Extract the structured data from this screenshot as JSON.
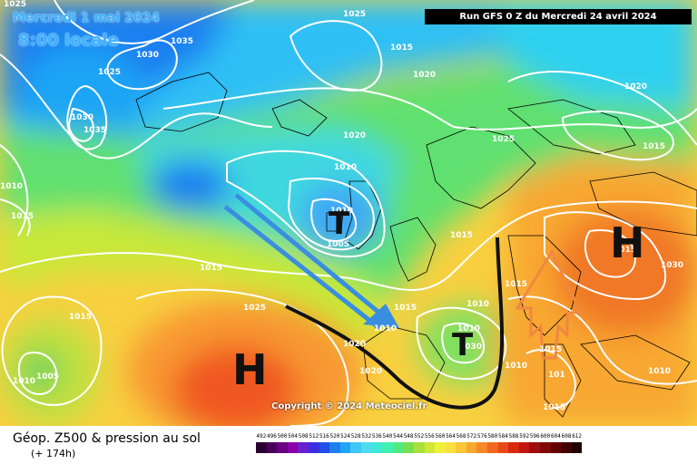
{
  "header": {
    "date": "Mercredi 1 mai 2024",
    "time": "8:00 locale",
    "run": "Run GFS 0 Z du Mercredi 24 avril 2024"
  },
  "copyright": "Copyright © 2024 Meteociel.fr",
  "footer": {
    "title": "Géop. Z500 & pression au sol",
    "subtitle": "(+ 174h)"
  },
  "legend": {
    "labels": [
      "492",
      "496",
      "500",
      "504",
      "508",
      "512",
      "516",
      "520",
      "524",
      "528",
      "532",
      "536",
      "540",
      "544",
      "548",
      "552",
      "556",
      "560",
      "564",
      "568",
      "572",
      "576",
      "580",
      "584",
      "588",
      "592",
      "596",
      "600",
      "604",
      "608",
      "612"
    ],
    "colors": [
      "#2b0033",
      "#4b005a",
      "#6a0080",
      "#8a00a8",
      "#6a1fd0",
      "#3a2fe0",
      "#1f4fe8",
      "#1f7ff0",
      "#1fa5f5",
      "#3fc8f5",
      "#4fdcf0",
      "#3fe8d8",
      "#3ff0b0",
      "#50e880",
      "#78e050",
      "#a8e040",
      "#d0e838",
      "#f0f038",
      "#f8e040",
      "#f8c838",
      "#f8a830",
      "#f88828",
      "#f06820",
      "#e84818",
      "#d82810",
      "#c01810",
      "#a00c0c",
      "#800808",
      "#600404",
      "#400202",
      "#200000"
    ]
  },
  "isobar_labels": [
    "1025",
    "1025",
    "1035",
    "1030",
    "1015",
    "1025",
    "1020",
    "1030",
    "1035",
    "1020",
    "1025",
    "1020",
    "1015",
    "1010",
    "1010",
    "1010",
    "1005",
    "1015",
    "1015",
    "1015",
    "1030",
    "1015",
    "1025",
    "1015",
    "1010",
    "1015",
    "1010",
    "1020",
    "1010",
    "1015",
    "1030",
    "1005",
    "1010",
    "101",
    "1015",
    "1010",
    "1010",
    "1020",
    "1015"
  ],
  "pressure_systems": [
    "H",
    "T",
    "T",
    "H",
    "H"
  ],
  "colors": {
    "cold_front_arrow": "#3a8ee0",
    "warm_arrow": "#f08840",
    "trough": "#111111",
    "isobar": "#ffffff",
    "coastline": "#000000",
    "date_text": "#3cb4ff"
  }
}
